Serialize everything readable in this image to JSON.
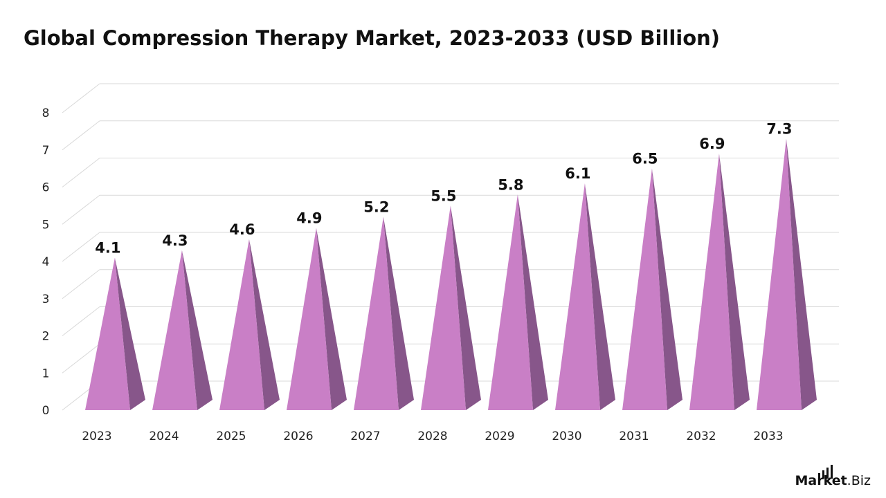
{
  "title": "Global Compression Therapy Market, 2023-2033 (USD Billion)",
  "brand": {
    "name_bold": "Market",
    "name_rest": ".Biz"
  },
  "colors": {
    "front": "#c97fc6",
    "side": "#87568a",
    "grid": "#d9d9d9",
    "label": "#111111"
  },
  "chart_data": {
    "type": "bar",
    "categories": [
      "2023",
      "2024",
      "2025",
      "2026",
      "2027",
      "2028",
      "2029",
      "2030",
      "2031",
      "2032",
      "2033"
    ],
    "values": [
      4.1,
      4.3,
      4.6,
      4.9,
      5.2,
      5.5,
      5.8,
      6.1,
      6.5,
      6.9,
      7.3
    ],
    "ylim": [
      0,
      8
    ],
    "yticks": [
      "0",
      "1",
      "2",
      "3",
      "4",
      "5",
      "6",
      "7",
      "8"
    ],
    "grid": true,
    "data_labels": true
  }
}
